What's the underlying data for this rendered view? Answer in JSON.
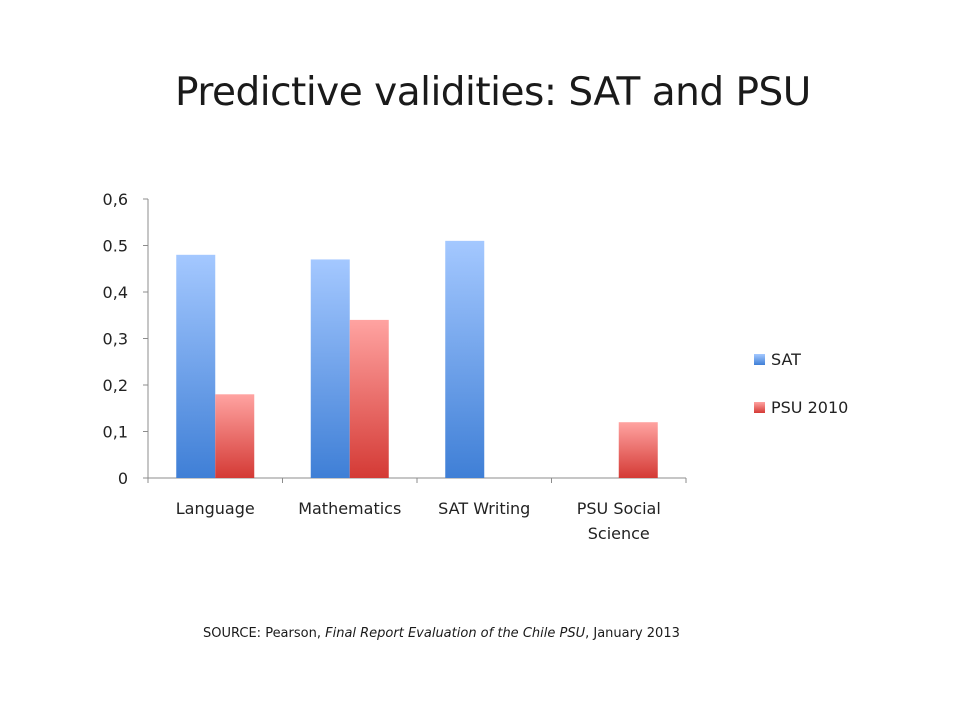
{
  "slide": {
    "title": "Predictive validities: SAT and PSU"
  },
  "source": {
    "prefix": "SOURCE: Pearson, ",
    "report": "Final Report Evaluation of the Chile PSU",
    "suffix": ", January 2013"
  },
  "chart_data": {
    "type": "bar",
    "title": "",
    "xlabel": "",
    "ylabel": "",
    "categories": [
      [
        "Language"
      ],
      [
        "Mathematics"
      ],
      [
        "SAT Writing"
      ],
      [
        "PSU Social",
        "Science"
      ]
    ],
    "series": [
      {
        "name": "SAT",
        "values": [
          0.48,
          0.47,
          0.51,
          null
        ],
        "color_top": "#a4c8ff",
        "color_bottom": "#3f7fd6"
      },
      {
        "name": "PSU 2010",
        "values": [
          0.18,
          0.34,
          null,
          0.12
        ],
        "color_top": "#ffa3a1",
        "color_bottom": "#d43a35"
      }
    ],
    "ylim": [
      0,
      0.6
    ],
    "yticks": [
      {
        "value": 0,
        "label": "0"
      },
      {
        "value": 0.1,
        "label": "0,1"
      },
      {
        "value": 0.2,
        "label": "0,2"
      },
      {
        "value": 0.3,
        "label": "0,3"
      },
      {
        "value": 0.4,
        "label": "0,4"
      },
      {
        "value": 0.5,
        "label": "0.5"
      },
      {
        "value": 0.6,
        "label": "0,6"
      }
    ],
    "grid": false,
    "legend_position": "right"
  }
}
